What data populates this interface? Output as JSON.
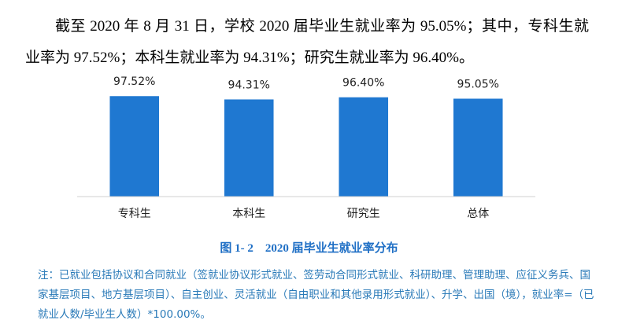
{
  "paragraph": "截至 2020 年 8 月 31 日，学校 2020 届毕业生就业率为 95.05%；其中，专科生就业率为 97.52%；本科生就业率为 94.31%；研究生就业率为 96.40%。",
  "chart_data": {
    "type": "bar",
    "categories": [
      "专科生",
      "本科生",
      "研究生",
      "总体"
    ],
    "values": [
      97.52,
      94.31,
      96.4,
      95.05
    ],
    "value_labels": [
      "97.52%",
      "94.31%",
      "96.40%",
      "95.05%"
    ],
    "color": "#1f78d1",
    "ylim": [
      0,
      100
    ]
  },
  "caption": "图 1- 2　2020 届毕业生就业率分布",
  "note": "注：已就业包括协议和合同就业（签就业协议形式就业、签劳动合同形式就业、科研助理、管理助理、应征义务兵、国家基层项目、地方基层项目）、自主创业、灵活就业（自由职业和其他录用形式就业）、升学、出国（境），就业率=（已就业人数/毕业生人数）*100.00%。"
}
